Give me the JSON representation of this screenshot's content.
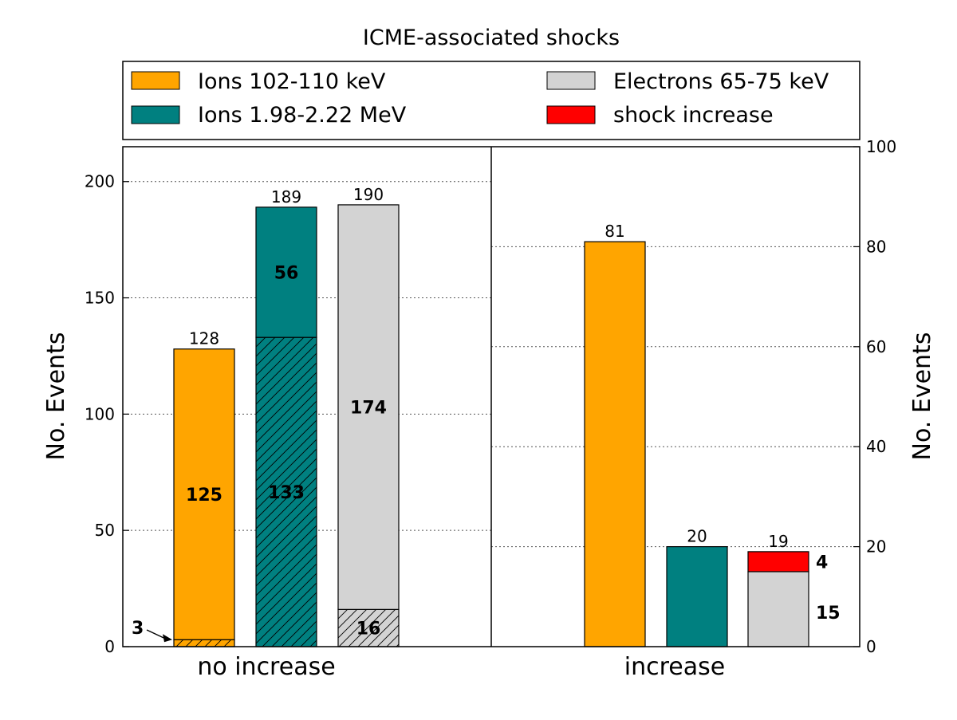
{
  "chart_data": {
    "type": "bar",
    "title": "ICME-associated shocks",
    "colors": {
      "ions_low": "#FFA500",
      "ions_high": "#008080",
      "electrons": "#D3D3D3",
      "shock": "#FF0000"
    },
    "legend": {
      "placement": "top",
      "entries": [
        {
          "key": "ions_low",
          "label": "Ions 102-110 keV"
        },
        {
          "key": "ions_high",
          "label": "Ions 1.98-2.22 MeV"
        },
        {
          "key": "electrons",
          "label": "Electrons 65-75 keV"
        },
        {
          "key": "shock",
          "label": "shock increase"
        }
      ]
    },
    "left_axis": {
      "ylabel": "No. Events",
      "ylim": [
        0,
        215
      ],
      "ticks": [
        0,
        50,
        100,
        150,
        200
      ],
      "tick_labels": [
        "0",
        "50",
        "100",
        "150",
        "200"
      ]
    },
    "right_axis": {
      "ylabel": "No. Events",
      "ylim": [
        0,
        100
      ],
      "ticks": [
        0,
        20,
        40,
        60,
        80,
        100
      ],
      "tick_labels": [
        "0",
        "20",
        "40",
        "60",
        "80",
        "100"
      ]
    },
    "panels": [
      {
        "category": "no increase",
        "axis": "left",
        "bars": [
          {
            "key": "ions_low",
            "total": 128,
            "total_label": "128",
            "segments": [
              {
                "value": 3,
                "color_key": "ions_low",
                "hatched": true
              },
              {
                "value": 125,
                "color_key": "ions_low",
                "hatched": false,
                "label": "125"
              }
            ],
            "annotation": {
              "label": "3",
              "value": 3
            }
          },
          {
            "key": "ions_high",
            "total": 189,
            "total_label": "189",
            "segments": [
              {
                "value": 133,
                "color_key": "ions_high",
                "hatched": true,
                "label": "133"
              },
              {
                "value": 56,
                "color_key": "ions_high",
                "hatched": false,
                "label": "56"
              }
            ]
          },
          {
            "key": "electrons",
            "total": 190,
            "total_label": "190",
            "segments": [
              {
                "value": 16,
                "color_key": "electrons",
                "hatched": true,
                "label": "16"
              },
              {
                "value": 174,
                "color_key": "electrons",
                "hatched": false,
                "label": "174"
              }
            ]
          }
        ]
      },
      {
        "category": "increase",
        "axis": "right",
        "bars": [
          {
            "key": "ions_low",
            "total": 81,
            "total_label": "81",
            "segments": [
              {
                "value": 81,
                "color_key": "ions_low",
                "hatched": false
              }
            ]
          },
          {
            "key": "ions_high",
            "total": 20,
            "total_label": "20",
            "segments": [
              {
                "value": 20,
                "color_key": "ions_high",
                "hatched": false
              }
            ]
          },
          {
            "key": "electrons",
            "total": 19,
            "total_label": "19",
            "segments": [
              {
                "value": 15,
                "color_key": "electrons",
                "hatched": false,
                "side_label": "15"
              },
              {
                "value": 4,
                "color_key": "shock",
                "hatched": false,
                "side_label": "4"
              }
            ]
          }
        ]
      }
    ]
  }
}
